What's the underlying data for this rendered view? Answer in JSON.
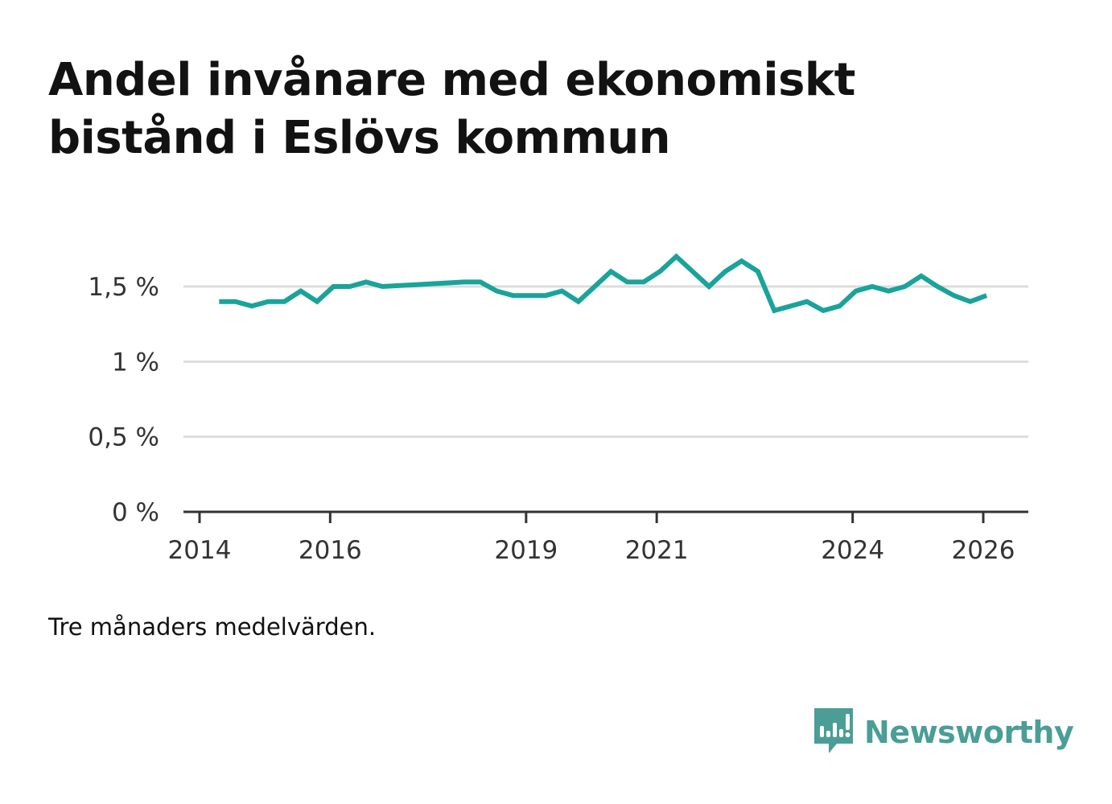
{
  "title": "Andel invånare med ekonomiskt bistånd i Eslövs kommun",
  "note": "Tre månaders medelvärden.",
  "brand": {
    "name": "Newsworthy",
    "icon": "newsworthy-logo-icon",
    "color": "#4a9e96"
  },
  "colors": {
    "line": "#1aa39a",
    "grid": "#dddddd",
    "axis": "#333333"
  },
  "chart_data": {
    "type": "line",
    "title": "Andel invånare med ekonomiskt bistånd i Eslövs kommun",
    "xlabel": "",
    "ylabel": "",
    "ylim": [
      0,
      1.7
    ],
    "xlim": [
      2013.9,
      2026.7
    ],
    "yticks": [
      {
        "value": 0,
        "label": "0 %"
      },
      {
        "value": 0.5,
        "label": "0,5 %"
      },
      {
        "value": 1,
        "label": "1 %"
      },
      {
        "value": 1.5,
        "label": "1,5 %"
      }
    ],
    "xticks": [
      {
        "value": 2014,
        "label": "2014"
      },
      {
        "value": 2016,
        "label": "2016"
      },
      {
        "value": 2019,
        "label": "2019"
      },
      {
        "value": 2021,
        "label": "2021"
      },
      {
        "value": 2024,
        "label": "2024"
      },
      {
        "value": 2026,
        "label": "2026"
      }
    ],
    "grid": true,
    "series": [
      {
        "name": "Andel invånare med ekonomiskt bistånd",
        "x": [
          2014.3,
          2014.55,
          2014.8,
          2015.05,
          2015.3,
          2015.55,
          2015.8,
          2016.05,
          2016.3,
          2016.55,
          2016.8,
          2018.05,
          2018.3,
          2018.55,
          2018.8,
          2019.05,
          2019.3,
          2019.55,
          2019.8,
          2020.05,
          2020.3,
          2020.55,
          2020.8,
          2021.05,
          2021.3,
          2021.55,
          2021.8,
          2022.05,
          2022.3,
          2022.55,
          2022.8,
          2023.05,
          2023.3,
          2023.55,
          2023.8,
          2024.05,
          2024.3,
          2024.55,
          2024.8,
          2025.05,
          2025.3,
          2025.55,
          2025.8,
          2026.05
        ],
        "values": [
          1.4,
          1.4,
          1.37,
          1.4,
          1.4,
          1.47,
          1.4,
          1.5,
          1.5,
          1.53,
          1.5,
          1.53,
          1.53,
          1.47,
          1.44,
          1.44,
          1.44,
          1.47,
          1.4,
          1.5,
          1.6,
          1.53,
          1.53,
          1.6,
          1.7,
          1.6,
          1.5,
          1.6,
          1.67,
          1.6,
          1.34,
          1.37,
          1.4,
          1.34,
          1.37,
          1.47,
          1.5,
          1.47,
          1.5,
          1.57,
          1.5,
          1.44,
          1.4,
          1.44
        ]
      }
    ]
  }
}
